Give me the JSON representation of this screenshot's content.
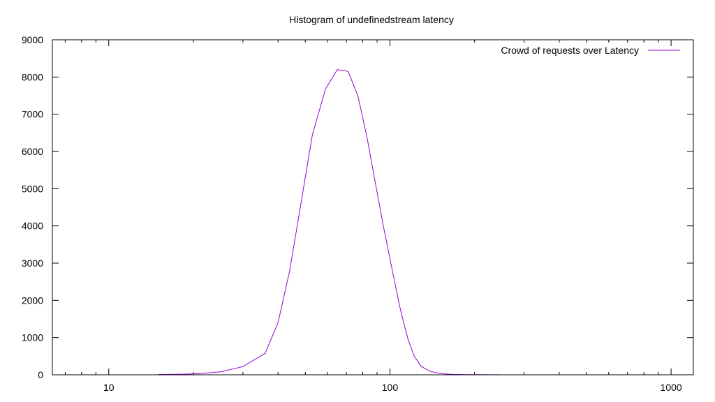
{
  "chart_data": {
    "type": "line",
    "title": "Histogram of undefinedstream latency",
    "xlabel": "",
    "ylabel": "",
    "xscale": "log",
    "xlim": [
      6.3,
      1200
    ],
    "ylim": [
      0,
      9000
    ],
    "x_ticks": [
      10,
      100,
      1000
    ],
    "y_ticks": [
      0,
      1000,
      2000,
      3000,
      4000,
      5000,
      6000,
      7000,
      8000,
      9000
    ],
    "grid": false,
    "legend_position": "top-right",
    "series": [
      {
        "name": "Crowd of requests over Latency",
        "color": "#9400d3",
        "x": [
          15,
          18,
          20,
          22,
          25,
          30,
          36,
          40,
          44,
          48,
          53,
          59,
          65,
          71,
          77,
          83,
          89,
          95,
          102,
          109,
          116,
          122,
          129,
          138,
          147,
          156,
          166,
          180,
          195,
          210,
          225,
          245
        ],
        "y": [
          10,
          15,
          25,
          45,
          80,
          220,
          580,
          1400,
          2800,
          4500,
          6450,
          7680,
          8200,
          8150,
          7480,
          6350,
          5100,
          3950,
          2800,
          1750,
          950,
          500,
          230,
          100,
          50,
          25,
          12,
          8,
          5,
          3,
          2,
          1
        ]
      }
    ]
  }
}
